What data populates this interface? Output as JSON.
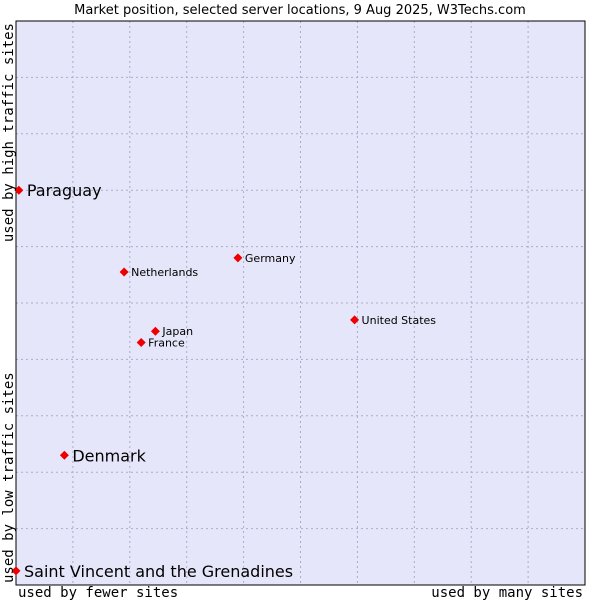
{
  "chart_data": {
    "type": "scatter",
    "title": "Market position, selected server locations, 9 Aug 2025, W3Techs.com",
    "xlabel_left": "used by fewer sites",
    "xlabel_right": "used by many sites",
    "ylabel_bottom": "used by low traffic sites",
    "ylabel_top": "used by high traffic sites",
    "xlim": [
      0,
      10
    ],
    "ylim": [
      0,
      10
    ],
    "grid": true,
    "colors": {
      "plot_bg": "#e6e6fa",
      "grid": "#aaaacc",
      "point": "#ee0000",
      "text": "#000000"
    },
    "points": [
      {
        "label": "Paraguay",
        "x": 0.05,
        "y": 7.0,
        "emphasis": true
      },
      {
        "label": "Germany",
        "x": 3.9,
        "y": 5.8,
        "emphasis": false
      },
      {
        "label": "Netherlands",
        "x": 1.9,
        "y": 5.55,
        "emphasis": false
      },
      {
        "label": "United States",
        "x": 5.95,
        "y": 4.7,
        "emphasis": false
      },
      {
        "label": "Japan",
        "x": 2.45,
        "y": 4.5,
        "emphasis": false
      },
      {
        "label": "France",
        "x": 2.2,
        "y": 4.3,
        "emphasis": false
      },
      {
        "label": "Denmark",
        "x": 0.85,
        "y": 2.3,
        "emphasis": true
      },
      {
        "label": "Saint Vincent and the Grenadines",
        "x": 0.0,
        "y": 0.25,
        "emphasis": true
      }
    ]
  }
}
